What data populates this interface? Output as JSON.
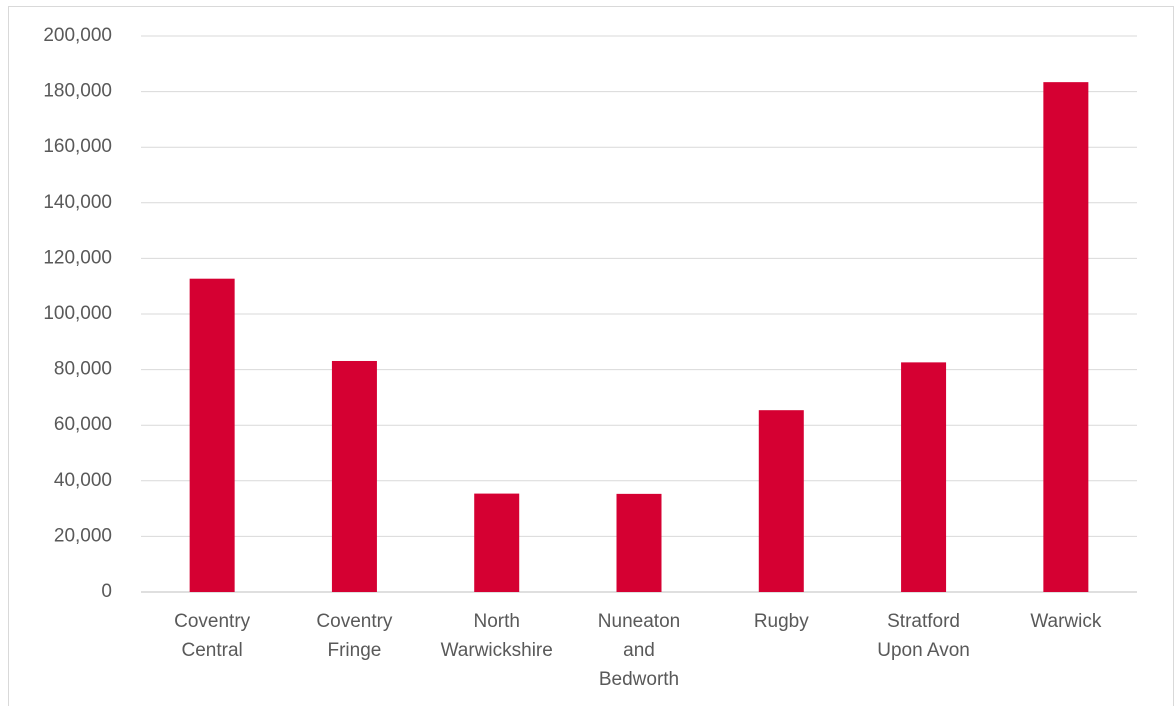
{
  "chart_data": {
    "type": "bar",
    "title": "",
    "xlabel": "",
    "ylabel": "",
    "categories": [
      [
        "Coventry",
        "Central"
      ],
      [
        "Coventry",
        "Fringe"
      ],
      [
        "North",
        "Warwickshire"
      ],
      [
        "Nuneaton",
        "and",
        "Bedworth"
      ],
      [
        "Rugby"
      ],
      [
        "Stratford",
        "Upon Avon"
      ],
      [
        "Warwick"
      ]
    ],
    "values": [
      112700,
      83100,
      35400,
      35300,
      65400,
      82600,
      183400
    ],
    "ylim": [
      0,
      200000
    ],
    "yticks": [
      "0",
      "20,000",
      "40,000",
      "60,000",
      "80,000",
      "100,000",
      "120,000",
      "140,000",
      "160,000",
      "180,000",
      "200,000"
    ],
    "ytick_values": [
      0,
      20000,
      40000,
      60000,
      80000,
      100000,
      120000,
      140000,
      160000,
      180000,
      200000
    ],
    "grid": true,
    "legend": "none",
    "bar_color": "#d50032",
    "grid_color": "#d9d9d9",
    "text_color": "#595959"
  }
}
